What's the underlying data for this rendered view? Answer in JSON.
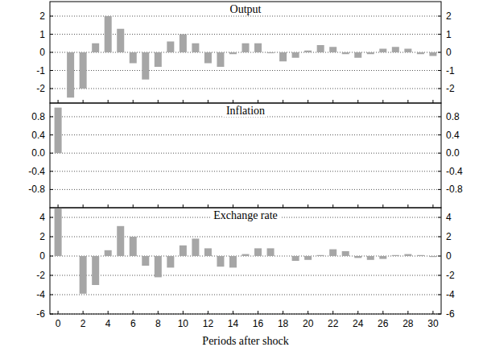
{
  "chart_data": [
    {
      "type": "bar",
      "title": "Output",
      "x": [
        0,
        1,
        2,
        3,
        4,
        5,
        6,
        7,
        8,
        9,
        10,
        11,
        12,
        13,
        14,
        15,
        16,
        17,
        18,
        19,
        20,
        21,
        22,
        23,
        24,
        25,
        26,
        27,
        28,
        29,
        30
      ],
      "values": [
        0,
        -2.5,
        -2.0,
        0.5,
        2.0,
        1.3,
        -0.6,
        -1.5,
        -0.8,
        0.6,
        1.0,
        0.5,
        -0.6,
        -0.8,
        -0.1,
        0.5,
        0.5,
        -0.05,
        -0.5,
        -0.3,
        0.1,
        0.4,
        0.3,
        -0.1,
        -0.3,
        -0.1,
        0.2,
        0.3,
        0.2,
        -0.1,
        -0.2
      ],
      "color": "#a6a6a6",
      "xlim": [
        -0.65,
        30.65
      ],
      "xticks": [
        0,
        2,
        4,
        6,
        8,
        10,
        12,
        14,
        16,
        18,
        20,
        22,
        24,
        26,
        28,
        30
      ],
      "ylim": [
        -2.8,
        2.8
      ],
      "yticks": [
        -2,
        -1,
        0,
        1,
        2
      ],
      "grid": true,
      "tick_labels": "y"
    },
    {
      "type": "bar",
      "title": "Inflation",
      "x": [
        0,
        1,
        2,
        3,
        4,
        5,
        6,
        7,
        8,
        9,
        10,
        11,
        12,
        13,
        14,
        15,
        16,
        17,
        18,
        19,
        20,
        21,
        22,
        23,
        24,
        25,
        26,
        27,
        28,
        29,
        30
      ],
      "values": [
        1.0,
        0,
        0,
        0,
        0,
        0,
        0,
        0,
        0,
        0,
        0,
        0,
        0,
        0,
        0,
        0,
        0,
        0,
        0,
        0,
        0,
        0,
        0,
        0,
        0,
        0,
        0,
        0,
        0,
        0,
        0
      ],
      "color": "#a6a6a6",
      "xlim": [
        -0.65,
        30.65
      ],
      "xticks": [
        0,
        2,
        4,
        6,
        8,
        10,
        12,
        14,
        16,
        18,
        20,
        22,
        24,
        26,
        28,
        30
      ],
      "ylim": [
        -1.2,
        1.1
      ],
      "yticks": [
        -0.8,
        -0.4,
        {
          "value": 0,
          "label": "0.0"
        },
        0.4,
        0.8
      ],
      "grid": true,
      "tick_labels": "y"
    },
    {
      "type": "bar",
      "title": "Exchange rate",
      "x_label": "Periods after shock",
      "x": [
        0,
        1,
        2,
        3,
        4,
        5,
        6,
        7,
        8,
        9,
        10,
        11,
        12,
        13,
        14,
        15,
        16,
        17,
        18,
        19,
        20,
        21,
        22,
        23,
        24,
        25,
        26,
        27,
        28,
        29,
        30
      ],
      "values": [
        5.0,
        0,
        -3.9,
        -3.0,
        0.6,
        3.1,
        2.0,
        -1.0,
        -2.2,
        -1.2,
        1.1,
        1.8,
        0.8,
        -1.1,
        -1.2,
        0.2,
        0.8,
        0.8,
        0,
        -0.5,
        -0.4,
        0.1,
        0.7,
        0.5,
        -0.2,
        -0.4,
        -0.3,
        0.1,
        0.2,
        0.1,
        -0.1
      ],
      "color": "#a6a6a6",
      "xlim": [
        -0.65,
        30.65
      ],
      "xticks": [
        0,
        2,
        4,
        6,
        8,
        10,
        12,
        14,
        16,
        18,
        20,
        22,
        24,
        26,
        28,
        30
      ],
      "ylim": [
        -6,
        5
      ],
      "yticks": [
        -6,
        -4,
        -2,
        0,
        2,
        4
      ],
      "grid": true
    }
  ]
}
